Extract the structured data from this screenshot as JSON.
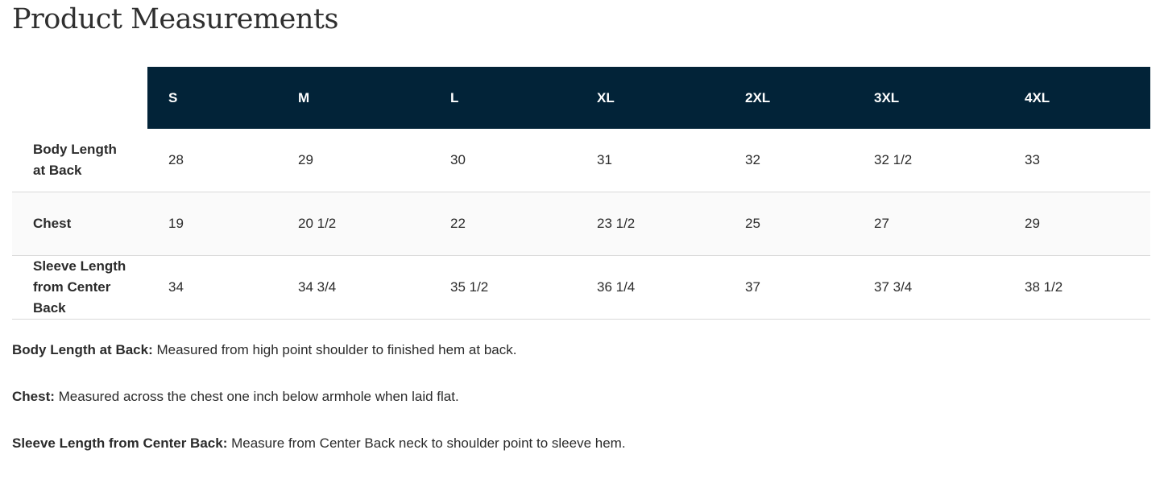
{
  "title": "Product Measurements",
  "colors": {
    "header_bg": "#022338",
    "header_text": "#ffffff",
    "alt_row_bg": "#fafafa"
  },
  "table": {
    "sizes": [
      "S",
      "M",
      "L",
      "XL",
      "2XL",
      "3XL",
      "4XL"
    ],
    "rows": [
      {
        "label": "Body Length at Back",
        "values": [
          "28",
          "29",
          "30",
          "31",
          "32",
          "32 1/2",
          "33"
        ]
      },
      {
        "label": "Chest",
        "values": [
          "19",
          "20 1/2",
          "22",
          "23 1/2",
          "25",
          "27",
          "29"
        ]
      },
      {
        "label": "Sleeve Length from Center Back",
        "values": [
          "34",
          "34 3/4",
          "35 1/2",
          "36 1/4",
          "37",
          "37 3/4",
          "38 1/2"
        ]
      }
    ]
  },
  "notes": [
    {
      "term": "Body Length at Back:",
      "text": " Measured from high point shoulder to finished hem at back."
    },
    {
      "term": "Chest:",
      "text": " Measured across the chest one inch below armhole when laid flat."
    },
    {
      "term": "Sleeve Length from Center Back:",
      "text": " Measure from Center Back neck to shoulder point to sleeve hem."
    }
  ]
}
